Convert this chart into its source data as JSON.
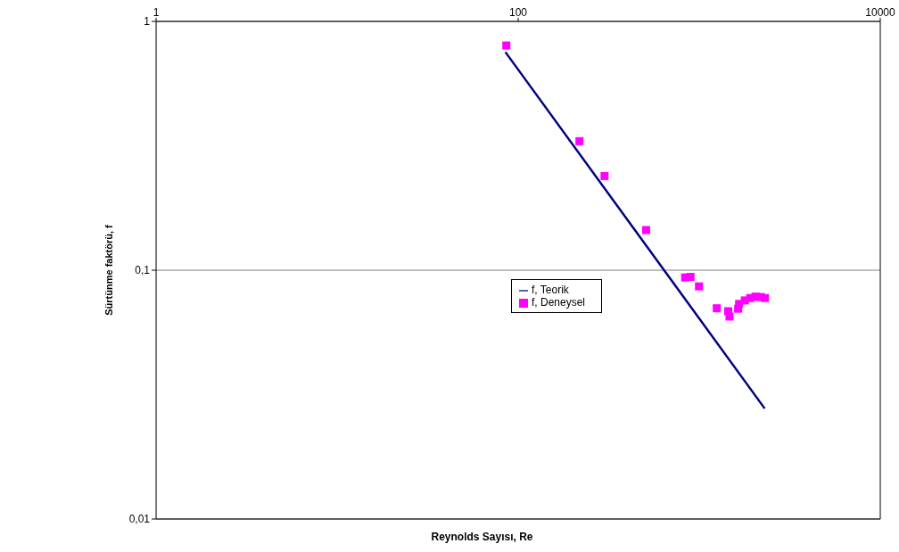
{
  "chart_data": {
    "type": "scatter",
    "xlabel": "Reynolds Sayısı, Re",
    "ylabel": "Sürtünme faktörü, f",
    "log": "xy",
    "grid": "y",
    "legend": "center",
    "marker": "square",
    "xlim": [
      1,
      10000
    ],
    "xticks": [
      1,
      100,
      10000
    ],
    "ylim": [
      0.01,
      1
    ],
    "yticks": [
      {
        "value": 0.01,
        "label": "0,01"
      },
      {
        "value": 0.1,
        "label": "0,1"
      },
      1
    ],
    "series": [
      {
        "name": "f, Teorik",
        "type": "line",
        "color": "#000080",
        "marker": "none",
        "x": [
          85,
          2300
        ],
        "values": [
          0.753,
          0.0278
        ]
      },
      {
        "name": "f, Deneysel",
        "color": "#ff00ff",
        "x": [
          86,
          218,
          300,
          509,
          836,
          895,
          997,
          1250,
          1445,
          1470,
          1640,
          1660,
          1787,
          1914,
          2047,
          2192,
          2307
        ],
        "values": [
          0.8,
          0.33,
          0.239,
          0.145,
          0.0935,
          0.094,
          0.0861,
          0.0703,
          0.0684,
          0.0651,
          0.07,
          0.0732,
          0.0756,
          0.0773,
          0.0783,
          0.078,
          0.0773
        ]
      }
    ]
  }
}
